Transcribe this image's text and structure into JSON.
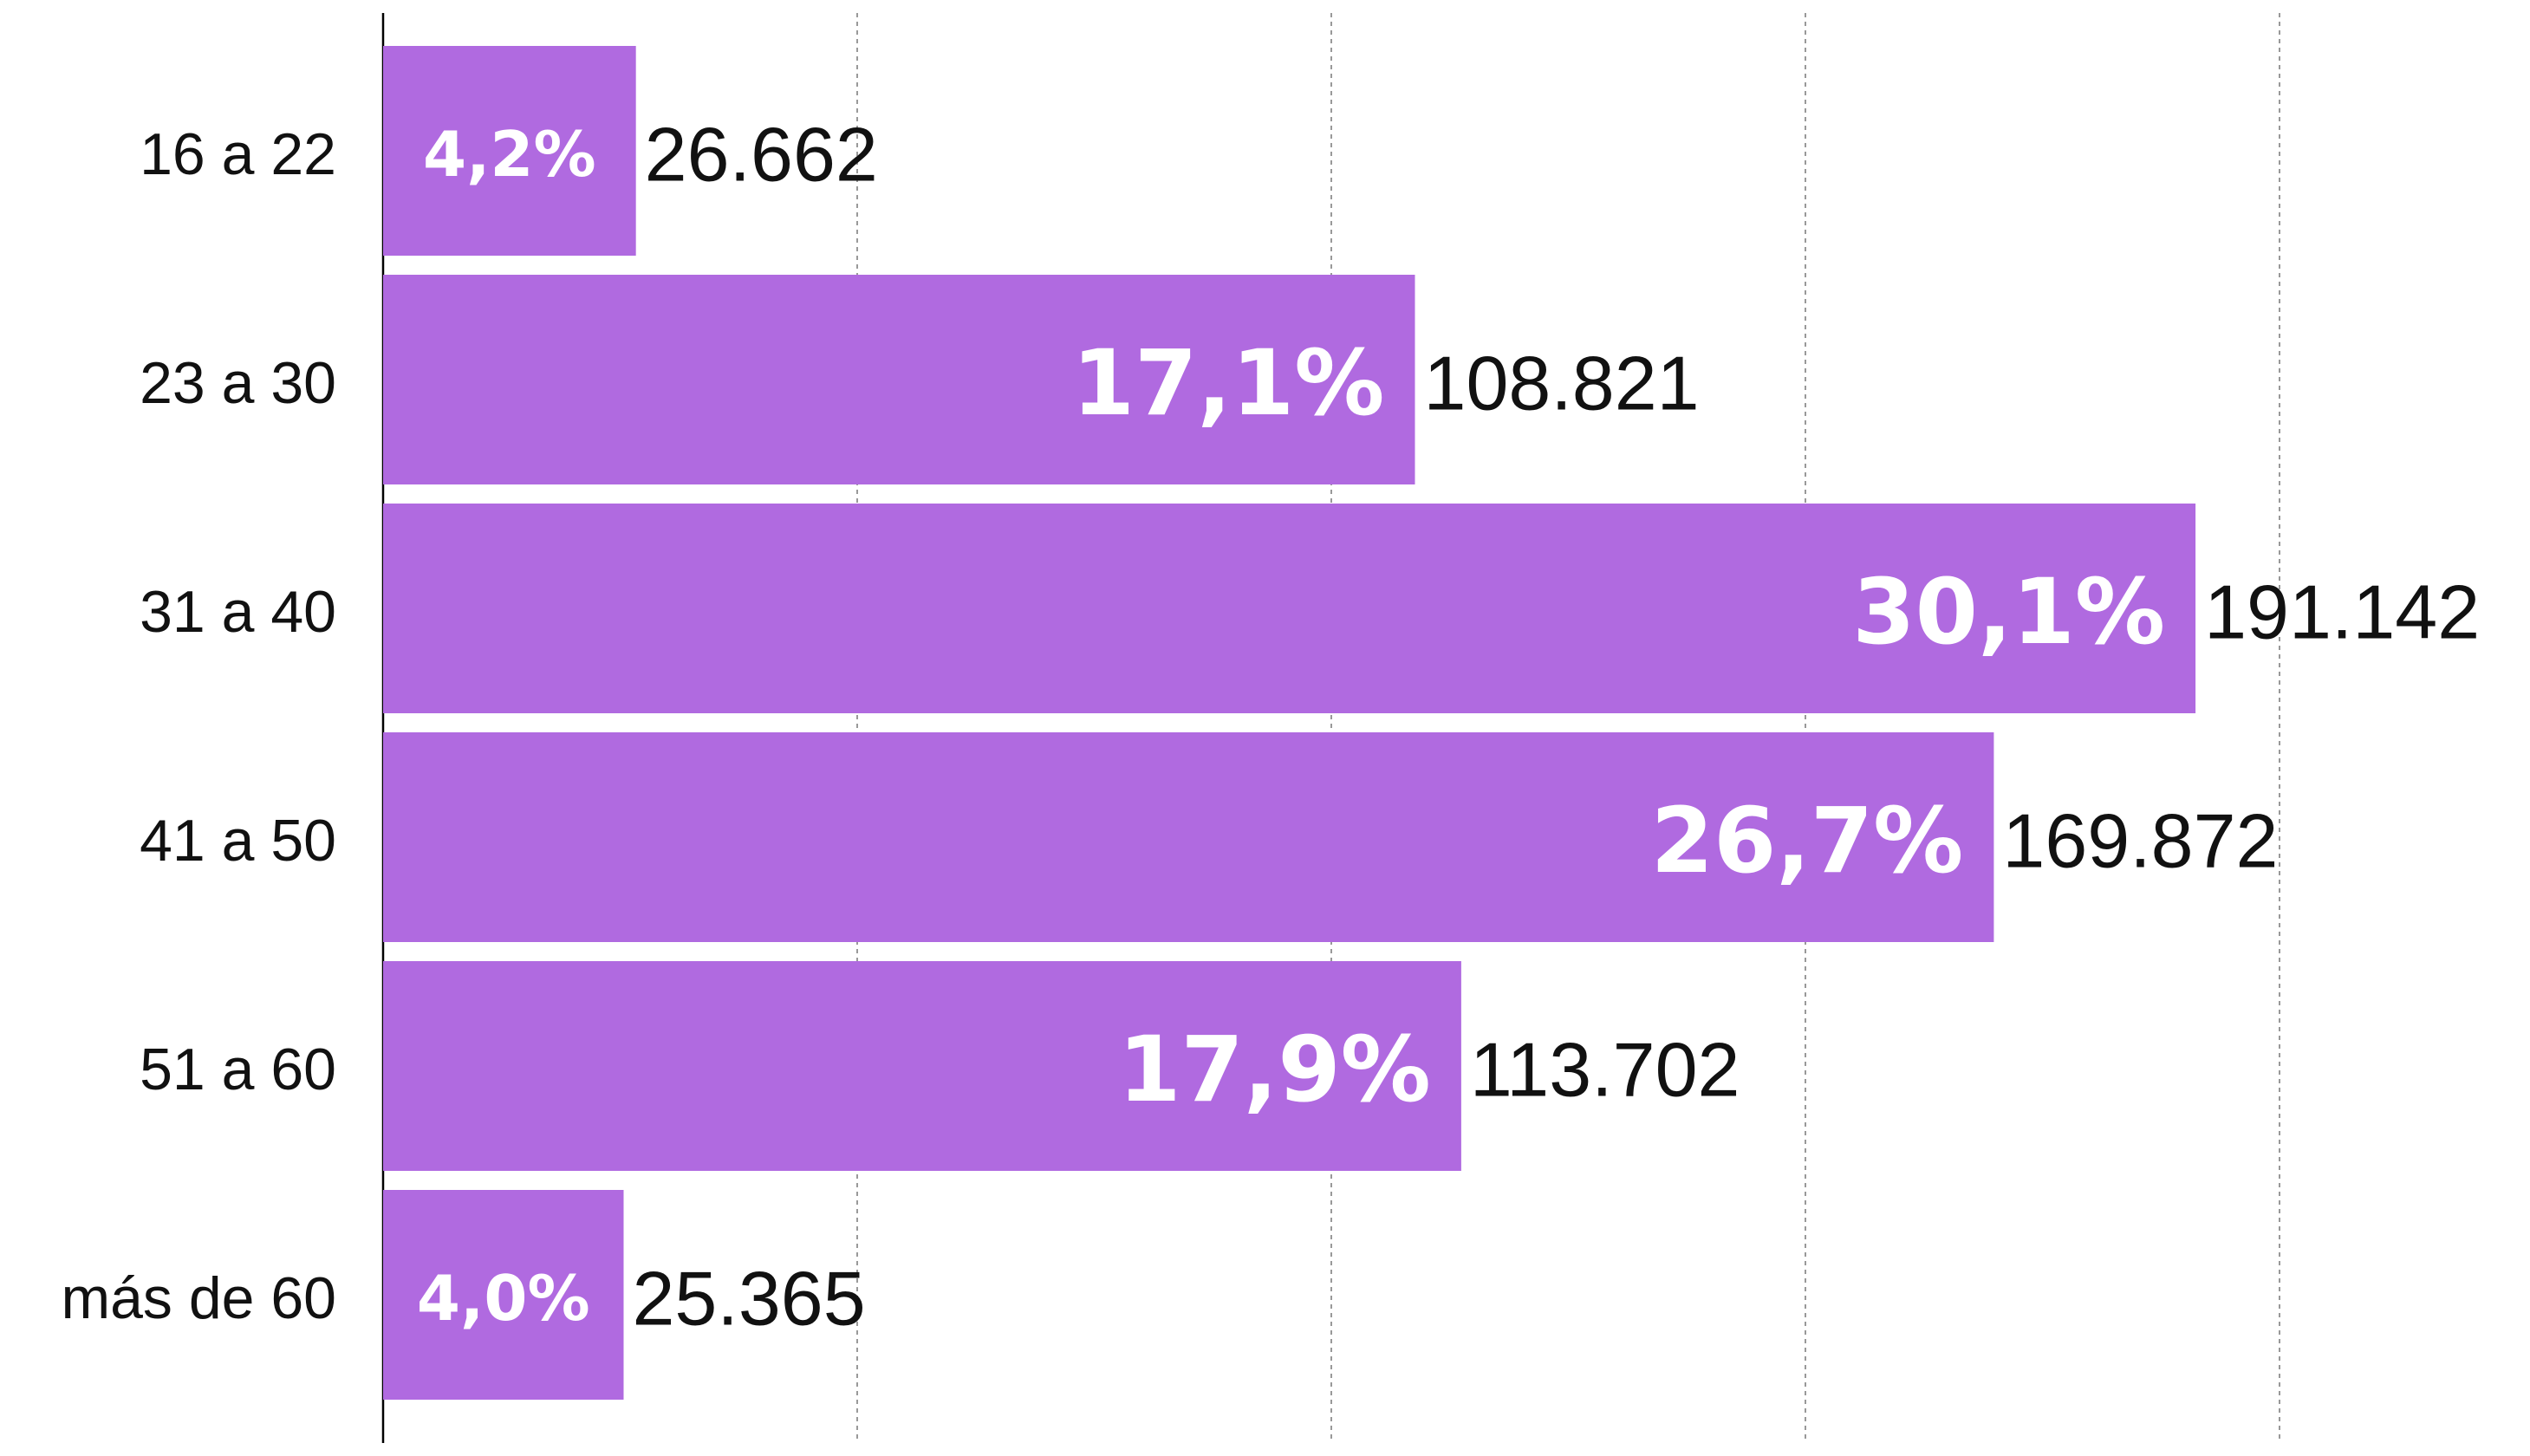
{
  "chart_data": {
    "type": "barh",
    "categories": [
      "16 a 22",
      "23 a 30",
      "31 a 40",
      "41 a 50",
      "51 a 60",
      "más de 60"
    ],
    "values": [
      26662,
      108821,
      191142,
      169872,
      113702,
      25365
    ],
    "value_labels": [
      "26.662",
      "108.821",
      "191.142",
      "169.872",
      "113.702",
      "25.365"
    ],
    "shares": [
      4.2,
      17.1,
      30.1,
      26.7,
      17.9,
      4.0
    ],
    "share_labels": [
      "4,2%",
      "17,1%",
      "30,1%",
      "26,7%",
      "17,9%",
      "4,0%"
    ],
    "color": "#b06ae0",
    "xlim": [
      0,
      200000
    ],
    "xticks": [
      0,
      50000,
      100000,
      150000,
      200000
    ],
    "grid": true
  }
}
